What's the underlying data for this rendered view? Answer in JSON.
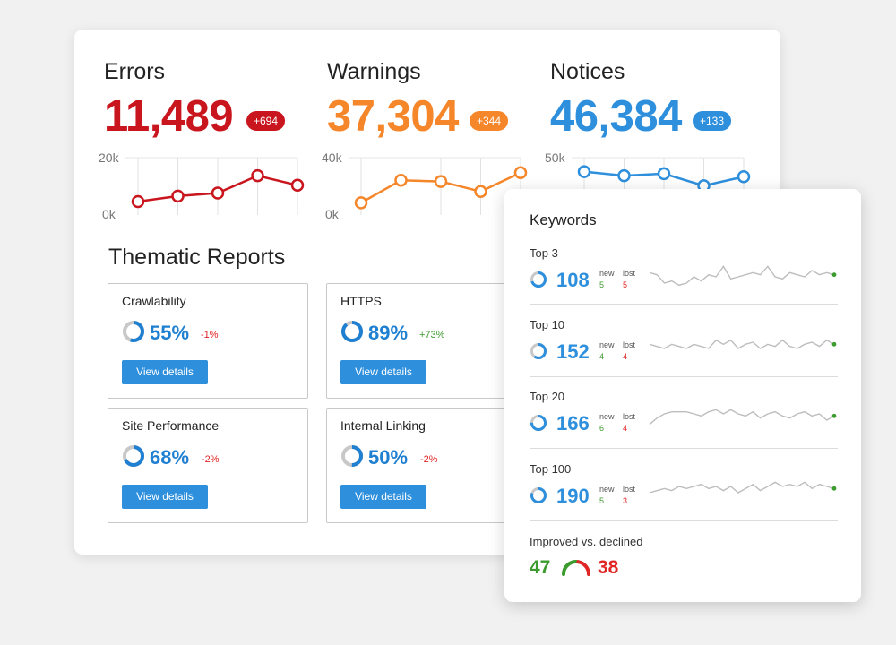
{
  "colors": {
    "errors": "#c9161e",
    "warnings": "#f5862a",
    "notices": "#2e8fdc",
    "accent_blue": "#1f7fd1",
    "positive": "#3c9b2e",
    "negative": "#e02525"
  },
  "metrics": [
    {
      "title": "Errors",
      "value": "11,489",
      "badge": "+694",
      "y_max_label": "20k",
      "y_min_label": "0k",
      "y_max": 20000,
      "series": [
        2500,
        4700,
        5900,
        12800,
        9000
      ]
    },
    {
      "title": "Warnings",
      "value": "37,304",
      "badge": "+344",
      "y_max_label": "40k",
      "y_min_label": "0k",
      "y_max": 40000,
      "series": [
        4000,
        22000,
        21000,
        13000,
        28000
      ]
    },
    {
      "title": "Notices",
      "value": "46,384",
      "badge": "+133",
      "y_max_label": "50k",
      "y_min_label": "",
      "y_max": 50000,
      "series": [
        36000,
        32000,
        34000,
        22000,
        31000
      ]
    }
  ],
  "thematic": {
    "title": "Thematic Reports",
    "reports": [
      {
        "name": "Crawlability",
        "percent": "55%",
        "fraction": 0.55,
        "delta": "-1%",
        "delta_sign": "negative",
        "button": "View details"
      },
      {
        "name": "HTTPS",
        "percent": "89%",
        "fraction": 0.89,
        "delta": "+73%",
        "delta_sign": "positive",
        "button": "View details"
      },
      {
        "name": "Site Performance",
        "percent": "68%",
        "fraction": 0.68,
        "delta": "-2%",
        "delta_sign": "negative",
        "button": "View details"
      },
      {
        "name": "Internal Linking",
        "percent": "50%",
        "fraction": 0.5,
        "delta": "-2%",
        "delta_sign": "negative",
        "button": "View details"
      }
    ]
  },
  "keywords": {
    "title": "Keywords",
    "new_label": "new",
    "lost_label": "lost",
    "rows": [
      {
        "label": "Top 3",
        "value": "108",
        "new": "5",
        "lost": "5",
        "fraction": 0.7,
        "spark": [
          10,
          9,
          5,
          6,
          4,
          5,
          8,
          6,
          9,
          8,
          13,
          7,
          8,
          9,
          10,
          9,
          13,
          8,
          7,
          10,
          9,
          8,
          11,
          9,
          10,
          9
        ]
      },
      {
        "label": "Top 10",
        "value": "152",
        "new": "4",
        "lost": "4",
        "fraction": 0.6,
        "spark": [
          10,
          9,
          8,
          10,
          9,
          8,
          10,
          9,
          8,
          12,
          10,
          12,
          8,
          10,
          11,
          8,
          10,
          9,
          12,
          9,
          8,
          10,
          11,
          9,
          12,
          10
        ]
      },
      {
        "label": "Top 20",
        "value": "166",
        "new": "6",
        "lost": "4",
        "fraction": 0.75,
        "spark": [
          6,
          9,
          11,
          12,
          12,
          12,
          11,
          10,
          12,
          13,
          11,
          13,
          11,
          10,
          12,
          9,
          11,
          12,
          10,
          9,
          11,
          12,
          10,
          11,
          8,
          10
        ]
      },
      {
        "label": "Top 100",
        "value": "190",
        "new": "5",
        "lost": "3",
        "fraction": 0.8,
        "spark": [
          8,
          9,
          10,
          9,
          11,
          10,
          11,
          12,
          10,
          11,
          9,
          11,
          8,
          10,
          12,
          9,
          11,
          13,
          11,
          12,
          11,
          13,
          10,
          12,
          11,
          10
        ]
      }
    ],
    "improved_label": "Improved vs. declined",
    "improved": "47",
    "declined": "38",
    "improved_fraction": 0.553
  }
}
